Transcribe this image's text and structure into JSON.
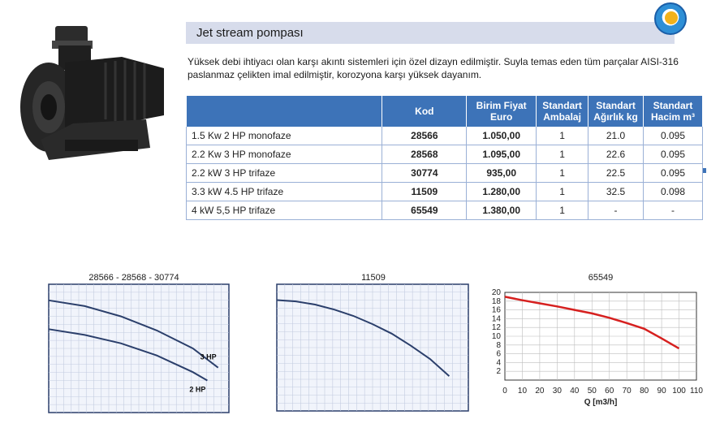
{
  "header": {
    "title": "Jet stream pompası"
  },
  "description": "Yüksek debi ihtiyacı olan karşı akıntı sistemleri için özel dizayn edilmiştir. Suyla temas eden tüm parçalar AISI-316 paslanmaz çelikten imal edilmiştir, korozyona karşı yüksek dayanım.",
  "table": {
    "headers": {
      "kod": "Kod",
      "fiyat_1": "Birim Fiyat",
      "fiyat_2": "Euro",
      "ambalaj_1": "Standart",
      "ambalaj_2": "Ambalaj",
      "agirlik_1": "Standart",
      "agirlik_2": "Ağırlık kg",
      "hacim_1": "Standart",
      "hacim_2": "Hacim m³"
    },
    "rows": [
      {
        "model": "1.5 Kw 2 HP monofaze",
        "kod": "28566",
        "fiyat": "1.050,00",
        "ambalaj": "1",
        "agirlik": "21.0",
        "hacim": "0.095"
      },
      {
        "model": "2.2 Kw 3 HP monofaze",
        "kod": "28568",
        "fiyat": "1.095,00",
        "ambalaj": "1",
        "agirlik": "22.6",
        "hacim": "0.095"
      },
      {
        "model": "2.2 kW 3 HP trifaze",
        "kod": "30774",
        "fiyat": "935,00",
        "ambalaj": "1",
        "agirlik": "22.5",
        "hacim": "0.095"
      },
      {
        "model": "3.3 kW 4.5 HP trifaze",
        "kod": "11509",
        "fiyat": "1.280,00",
        "ambalaj": "1",
        "agirlik": "32.5",
        "hacim": "0.098"
      },
      {
        "model": "4 kW 5,5 HP trifaze",
        "kod": "65549",
        "fiyat": "1.380,00",
        "ambalaj": "1",
        "agirlik": "-",
        "hacim": "-"
      }
    ]
  },
  "chart_data": [
    {
      "type": "line",
      "title": "28566 - 28568 - 30774",
      "xlim": [
        0,
        100
      ],
      "ylim": [
        0,
        20
      ],
      "series": [
        {
          "name": "3 HP",
          "x": [
            0,
            20,
            40,
            60,
            80,
            94
          ],
          "y": [
            17.5,
            16.6,
            15.0,
            12.8,
            10.0,
            7.0
          ],
          "color": "#2b3f6b"
        },
        {
          "name": "2 HP",
          "x": [
            0,
            20,
            40,
            60,
            80,
            88
          ],
          "y": [
            13.0,
            12.1,
            10.8,
            8.9,
            6.3,
            5.0
          ],
          "color": "#2b3f6b"
        }
      ]
    },
    {
      "type": "line",
      "title": "11509",
      "xlim": [
        0,
        100
      ],
      "ylim": [
        0,
        20
      ],
      "series": [
        {
          "x": [
            0,
            10,
            20,
            30,
            40,
            50,
            60,
            70,
            80,
            90
          ],
          "y": [
            17.5,
            17.3,
            16.8,
            16.0,
            15.0,
            13.7,
            12.2,
            10.3,
            8.2,
            5.5
          ],
          "color": "#2b3f6b"
        }
      ]
    },
    {
      "type": "line",
      "title": "65549",
      "xlabel": "Q [m3/h]",
      "xlim": [
        0,
        110
      ],
      "ylim": [
        0,
        20
      ],
      "xticks": [
        0,
        10,
        20,
        30,
        40,
        50,
        60,
        70,
        80,
        90,
        100,
        110
      ],
      "yticks": [
        2,
        4,
        6,
        8,
        10,
        12,
        14,
        16,
        18,
        20
      ],
      "series": [
        {
          "x": [
            0,
            10,
            20,
            30,
            40,
            50,
            60,
            70,
            80,
            90,
            100
          ],
          "y": [
            19.0,
            18.2,
            17.5,
            16.8,
            16.0,
            15.2,
            14.2,
            13.0,
            11.7,
            9.5,
            7.2
          ],
          "color": "#d6201f"
        }
      ]
    }
  ]
}
